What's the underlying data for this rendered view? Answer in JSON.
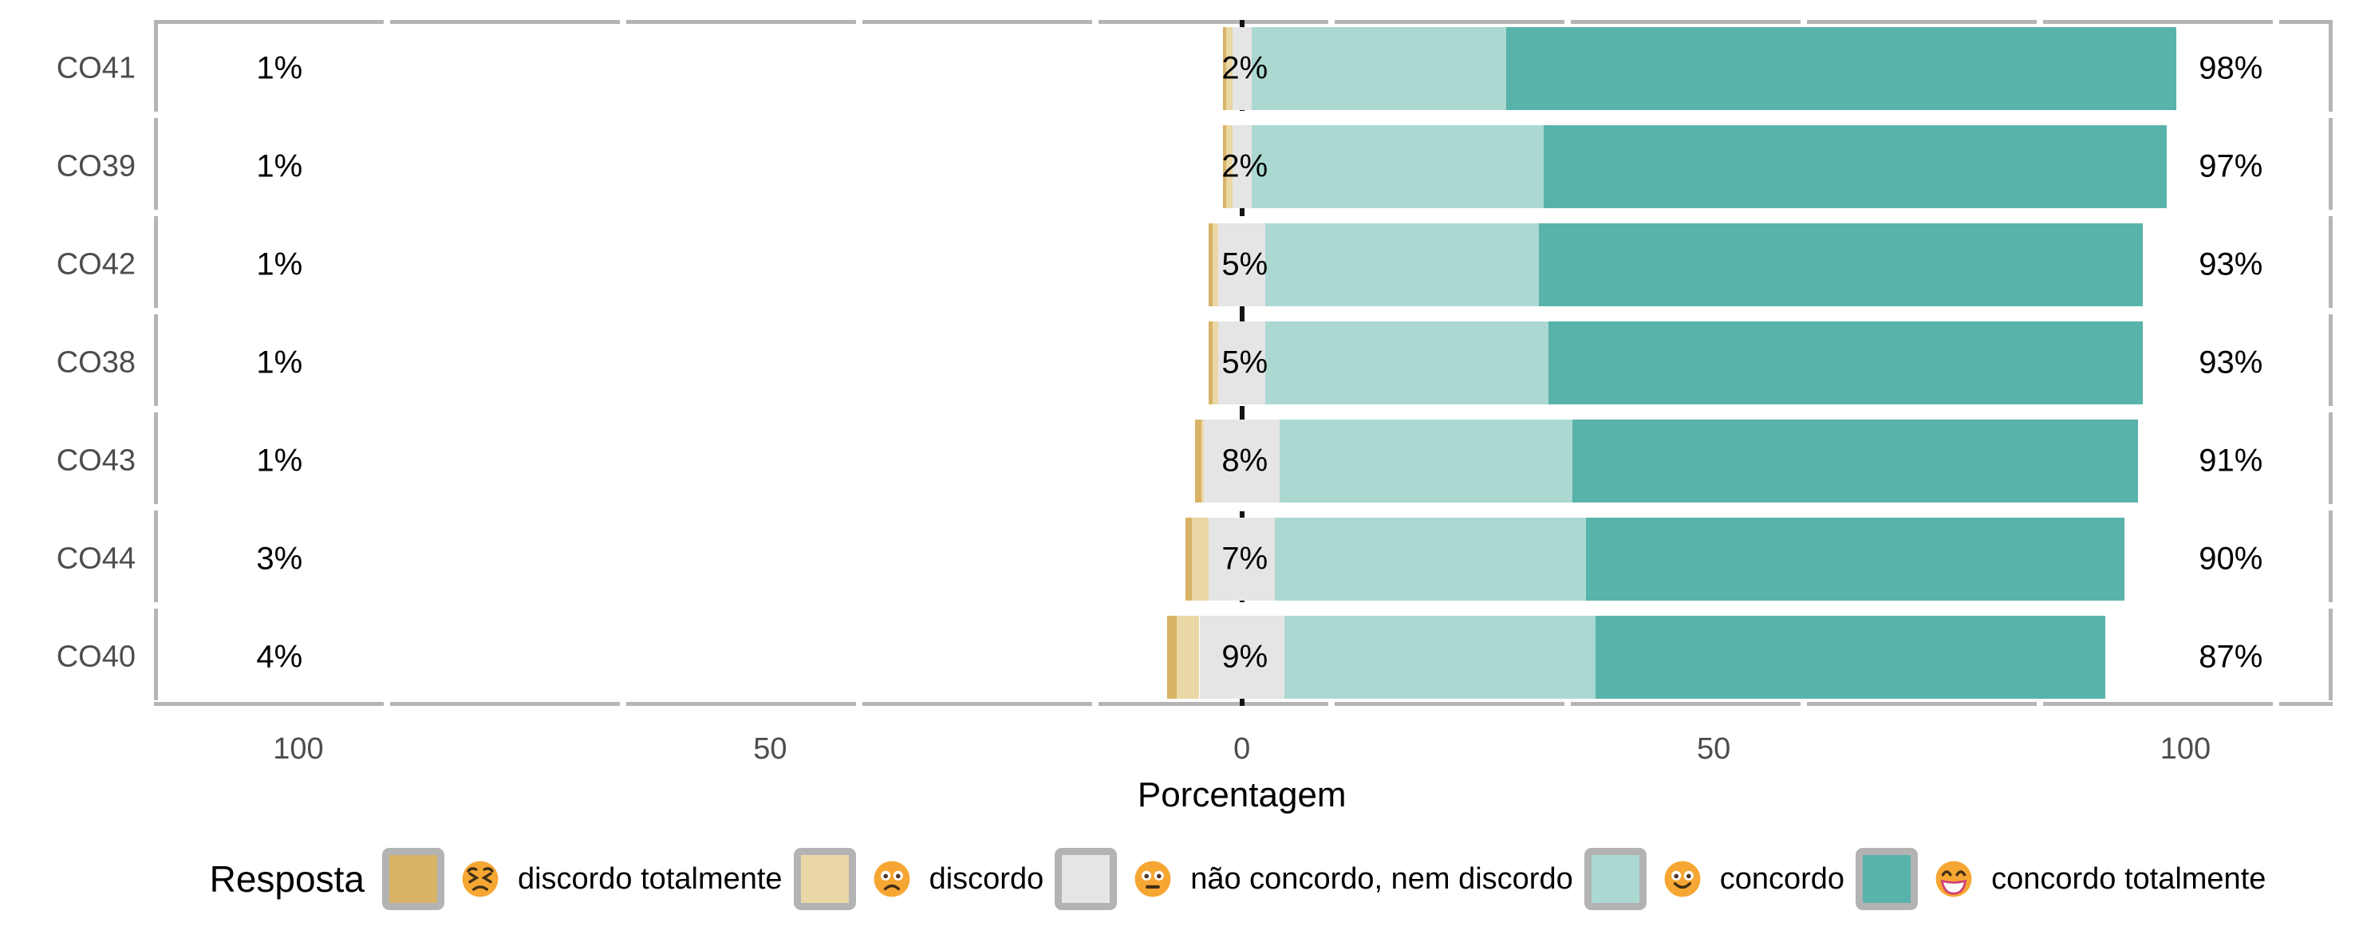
{
  "chart_data": {
    "type": "bar",
    "variant": "diverging-stacked-likert",
    "orientation": "horizontal",
    "xlabel": "Porcentagem",
    "x_range": [
      -115.3,
      115.6
    ],
    "x_ticks": [
      {
        "value": -100,
        "label": "100"
      },
      {
        "value": -50,
        "label": "50"
      },
      {
        "value": 0,
        "label": "0"
      },
      {
        "value": 50,
        "label": "50"
      },
      {
        "value": 100,
        "label": "100"
      }
    ],
    "grid": false,
    "zero_line_value": 0,
    "series_order": [
      "discordo totalmente",
      "discordo",
      "não concordo, nem discordo",
      "concordo",
      "concordo totalmente"
    ],
    "palette": [
      "#d8b365",
      "#ead7a6",
      "#e5e5e5",
      "#abd9d2",
      "#58b3aa"
    ],
    "rows": [
      {
        "category": "CO41",
        "segments": [
          0.3,
          0.7,
          2,
          27,
          71
        ],
        "label_left": "1%",
        "label_center": "2%",
        "label_right": "98%"
      },
      {
        "category": "CO39",
        "segments": [
          0.3,
          0.7,
          2,
          31,
          66
        ],
        "label_left": "1%",
        "label_center": "2%",
        "label_right": "97%"
      },
      {
        "category": "CO42",
        "segments": [
          0.4,
          0.6,
          5,
          29,
          64
        ],
        "label_left": "1%",
        "label_center": "5%",
        "label_right": "93%"
      },
      {
        "category": "CO38",
        "segments": [
          0.4,
          0.6,
          5,
          30,
          63
        ],
        "label_left": "1%",
        "label_center": "5%",
        "label_right": "93%"
      },
      {
        "category": "CO43",
        "segments": [
          0.7,
          0.3,
          8,
          31,
          60
        ],
        "label_left": "1%",
        "label_center": "8%",
        "label_right": "91%"
      },
      {
        "category": "CO44",
        "segments": [
          0.7,
          1.8,
          7,
          33,
          57
        ],
        "label_left": "3%",
        "label_center": "7%",
        "label_right": "90%"
      },
      {
        "category": "CO40",
        "segments": [
          1.0,
          2.4,
          9,
          33,
          54
        ],
        "label_left": "4%",
        "label_center": "9%",
        "label_right": "87%"
      }
    ],
    "value_label_positions": {
      "left": -102,
      "center": 0.3,
      "right": 104.8
    },
    "legend": {
      "title": "Resposta",
      "position": "bottom",
      "items": [
        {
          "label": "discordo totalmente",
          "color": "#d8b365",
          "emoji": "persevering-face"
        },
        {
          "label": "discordo",
          "color": "#ead7a6",
          "emoji": "frowning-face"
        },
        {
          "label": "não concordo, nem discordo",
          "color": "#e5e5e5",
          "emoji": "neutral-face"
        },
        {
          "label": "concordo",
          "color": "#abd9d2",
          "emoji": "slightly-smiling-face"
        },
        {
          "label": "concordo totalmente",
          "color": "#58b3aa",
          "emoji": "grinning-face"
        }
      ]
    },
    "style_colors": {
      "panel_border": "#b5b5b5",
      "zero_line": "#141414",
      "axis_text": "#4d4d4d",
      "value_text": "#000000",
      "emoji_face": "#f6a632"
    }
  }
}
